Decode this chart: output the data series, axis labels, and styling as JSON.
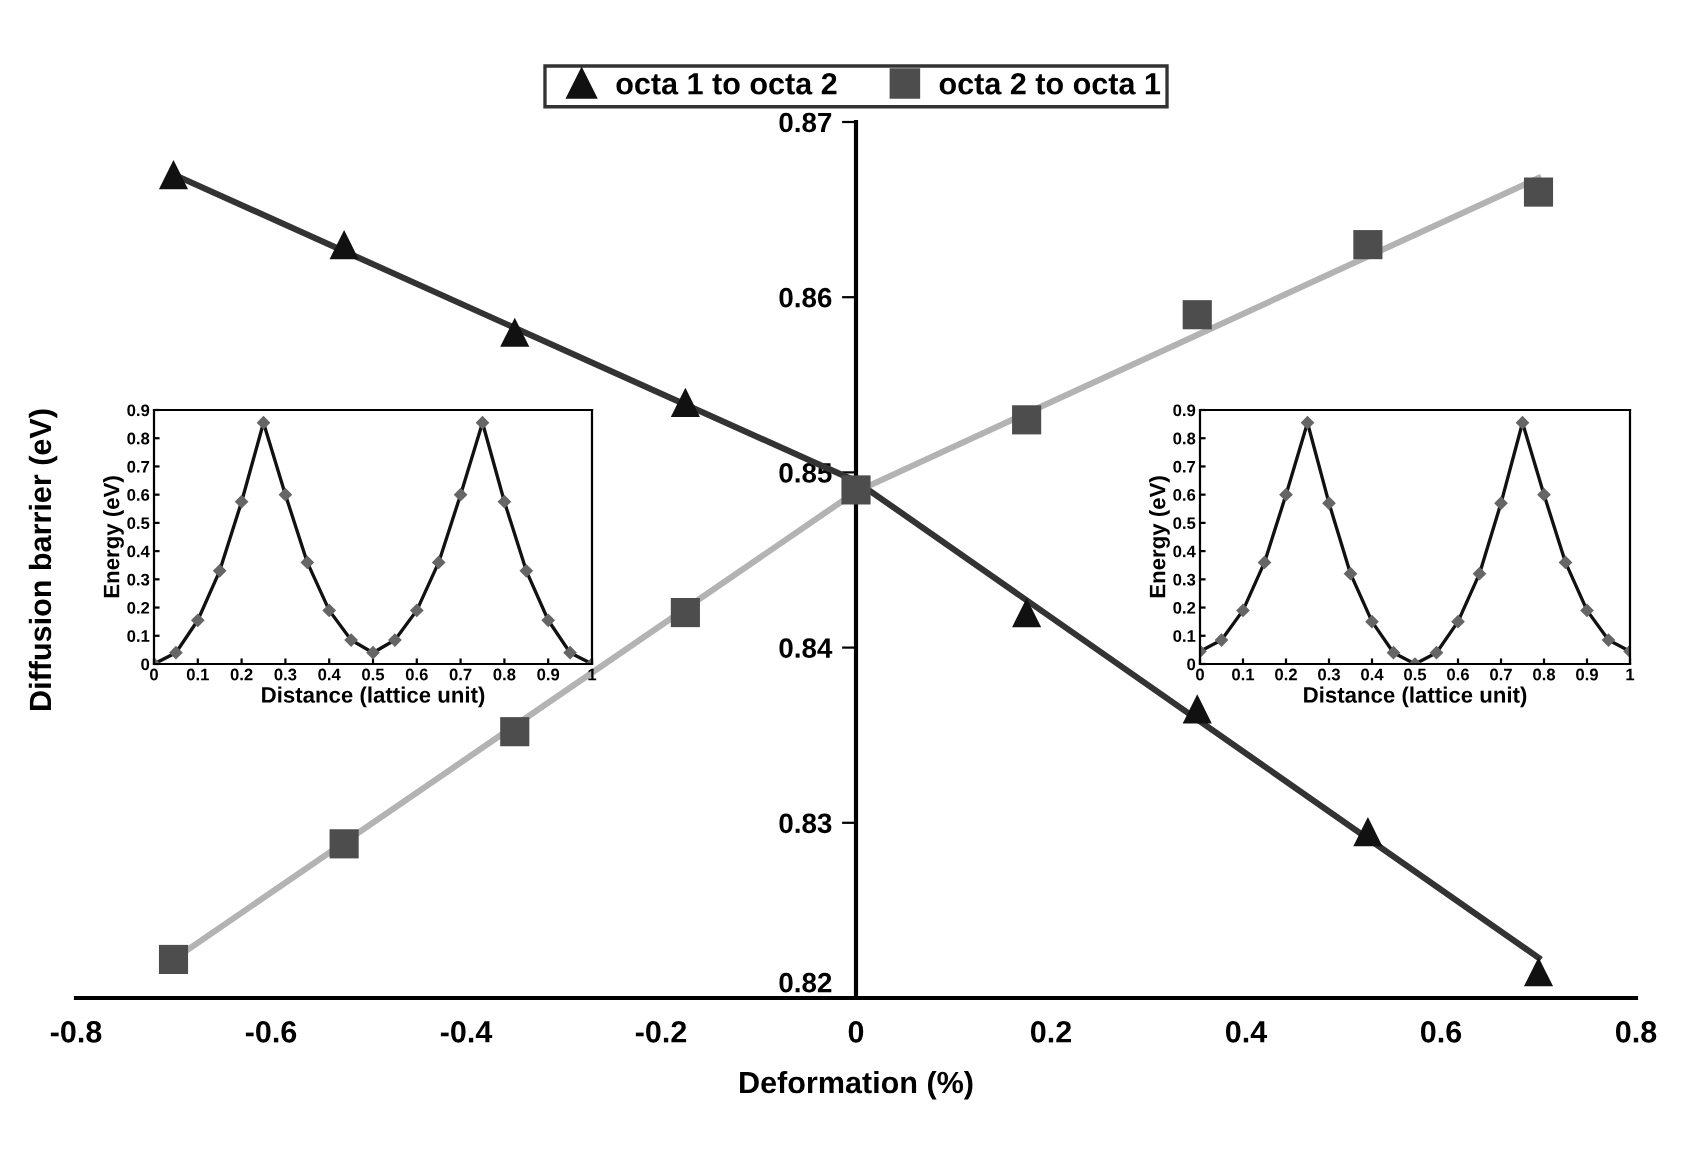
{
  "chart_data": [
    {
      "type": "scatter",
      "xlabel": "Deformation (%)",
      "ylabel": "Diffusion barrier (eV)",
      "xlim": [
        -0.8,
        0.8
      ],
      "ylim": [
        0.82,
        0.87
      ],
      "xticks": [
        -0.8,
        -0.6,
        -0.4,
        -0.2,
        0,
        0.2,
        0.4,
        0.6,
        0.8
      ],
      "yticks": [
        0.82,
        0.83,
        0.84,
        0.85,
        0.86,
        0.87
      ],
      "grid": false,
      "legend": "top",
      "x": [
        -0.7,
        -0.525,
        -0.35,
        -0.175,
        0,
        0.175,
        0.35,
        0.525,
        0.7
      ],
      "series": [
        {
          "name": "octa 1 to octa 2",
          "color": "#111111",
          "marker": "triangle",
          "values": [
            0.867,
            0.863,
            0.858,
            0.854,
            null,
            0.842,
            0.8365,
            0.8295,
            0.8215
          ]
        },
        {
          "name": "octa 2 to octa 1",
          "color": "#4d4d4d",
          "marker": "square",
          "values": [
            0.8222,
            0.8288,
            0.8352,
            0.842,
            0.849,
            0.853,
            0.859,
            0.863,
            0.866
          ]
        },
        {
          "type": "line",
          "color": "#333333",
          "marker": "none",
          "x": [
            -0.7,
            0,
            0.7
          ],
          "values": [
            0.867,
            0.8495,
            0.8223
          ]
        },
        {
          "type": "line",
          "color": "#b3b3b3",
          "marker": "none",
          "x": [
            -0.7,
            0,
            0.7
          ],
          "values": [
            0.8222,
            0.8489,
            0.8668
          ]
        }
      ]
    },
    {
      "type": "line",
      "xlabel": "Distance (lattice unit)",
      "ylabel": "Energy (eV)",
      "xlim": [
        0,
        1
      ],
      "ylim": [
        0,
        0.9
      ],
      "xticks": [
        0,
        0.1,
        0.2,
        0.3,
        0.4,
        0.5,
        0.6,
        0.7,
        0.8,
        0.9,
        1
      ],
      "yticks": [
        0,
        0.1,
        0.2,
        0.3,
        0.4,
        0.5,
        0.6,
        0.7,
        0.8,
        0.9
      ],
      "grid": false,
      "marker": "diamond",
      "x": [
        0,
        0.05,
        0.1,
        0.15,
        0.2,
        0.25,
        0.3,
        0.35,
        0.4,
        0.45,
        0.5,
        0.55,
        0.6,
        0.65,
        0.7,
        0.75,
        0.8,
        0.85,
        0.9,
        0.95,
        1
      ],
      "series": [
        {
          "color": "#111111",
          "values": [
            0,
            0.04,
            0.155,
            0.33,
            0.575,
            0.855,
            0.6,
            0.36,
            0.19,
            0.085,
            0.04,
            0.085,
            0.19,
            0.36,
            0.6,
            0.855,
            0.575,
            0.33,
            0.155,
            0.04,
            0
          ]
        }
      ]
    },
    {
      "type": "line",
      "xlabel": "Distance (lattice unit)",
      "ylabel": "Energy (eV)",
      "xlim": [
        0,
        1
      ],
      "ylim": [
        0,
        0.9
      ],
      "xticks": [
        0,
        0.1,
        0.2,
        0.3,
        0.4,
        0.5,
        0.6,
        0.7,
        0.8,
        0.9,
        1
      ],
      "yticks": [
        0,
        0.1,
        0.2,
        0.3,
        0.4,
        0.5,
        0.6,
        0.7,
        0.8,
        0.9
      ],
      "grid": false,
      "marker": "diamond",
      "x": [
        0,
        0.05,
        0.1,
        0.15,
        0.2,
        0.25,
        0.3,
        0.35,
        0.4,
        0.45,
        0.5,
        0.55,
        0.6,
        0.65,
        0.7,
        0.75,
        0.8,
        0.85,
        0.9,
        0.95,
        1
      ],
      "series": [
        {
          "color": "#111111",
          "values": [
            0.045,
            0.085,
            0.19,
            0.36,
            0.6,
            0.855,
            0.57,
            0.32,
            0.15,
            0.04,
            0,
            0.04,
            0.15,
            0.32,
            0.57,
            0.855,
            0.6,
            0.36,
            0.19,
            0.085,
            0.045
          ]
        }
      ]
    }
  ]
}
